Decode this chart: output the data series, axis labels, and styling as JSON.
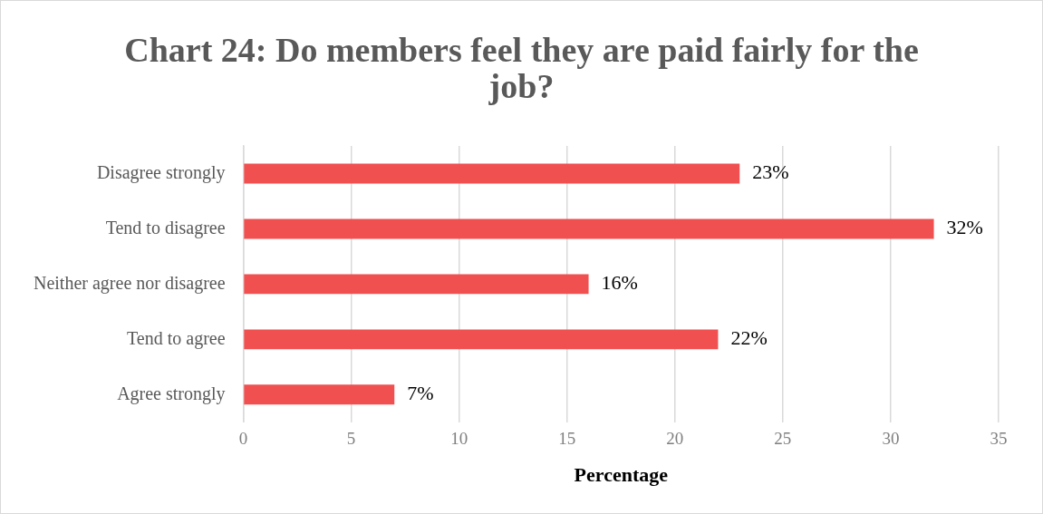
{
  "chart_data": {
    "type": "bar",
    "orientation": "horizontal",
    "title": "Chart 24: Do members feel they are paid fairly for the job?",
    "xlabel": "Percentage",
    "categories": [
      "Disagree strongly",
      "Tend to disagree",
      "Neither agree nor disagree",
      "Tend to agree",
      "Agree strongly"
    ],
    "values": [
      23,
      32,
      16,
      22,
      7
    ],
    "color": "#f05050",
    "value_labels": [
      "23%",
      "32%",
      "16%",
      "22%",
      "7%"
    ],
    "xlim": [
      0,
      35
    ],
    "xticks": [
      0,
      5,
      10,
      15,
      20,
      25,
      30,
      35
    ],
    "grid": "x",
    "legend": false
  }
}
